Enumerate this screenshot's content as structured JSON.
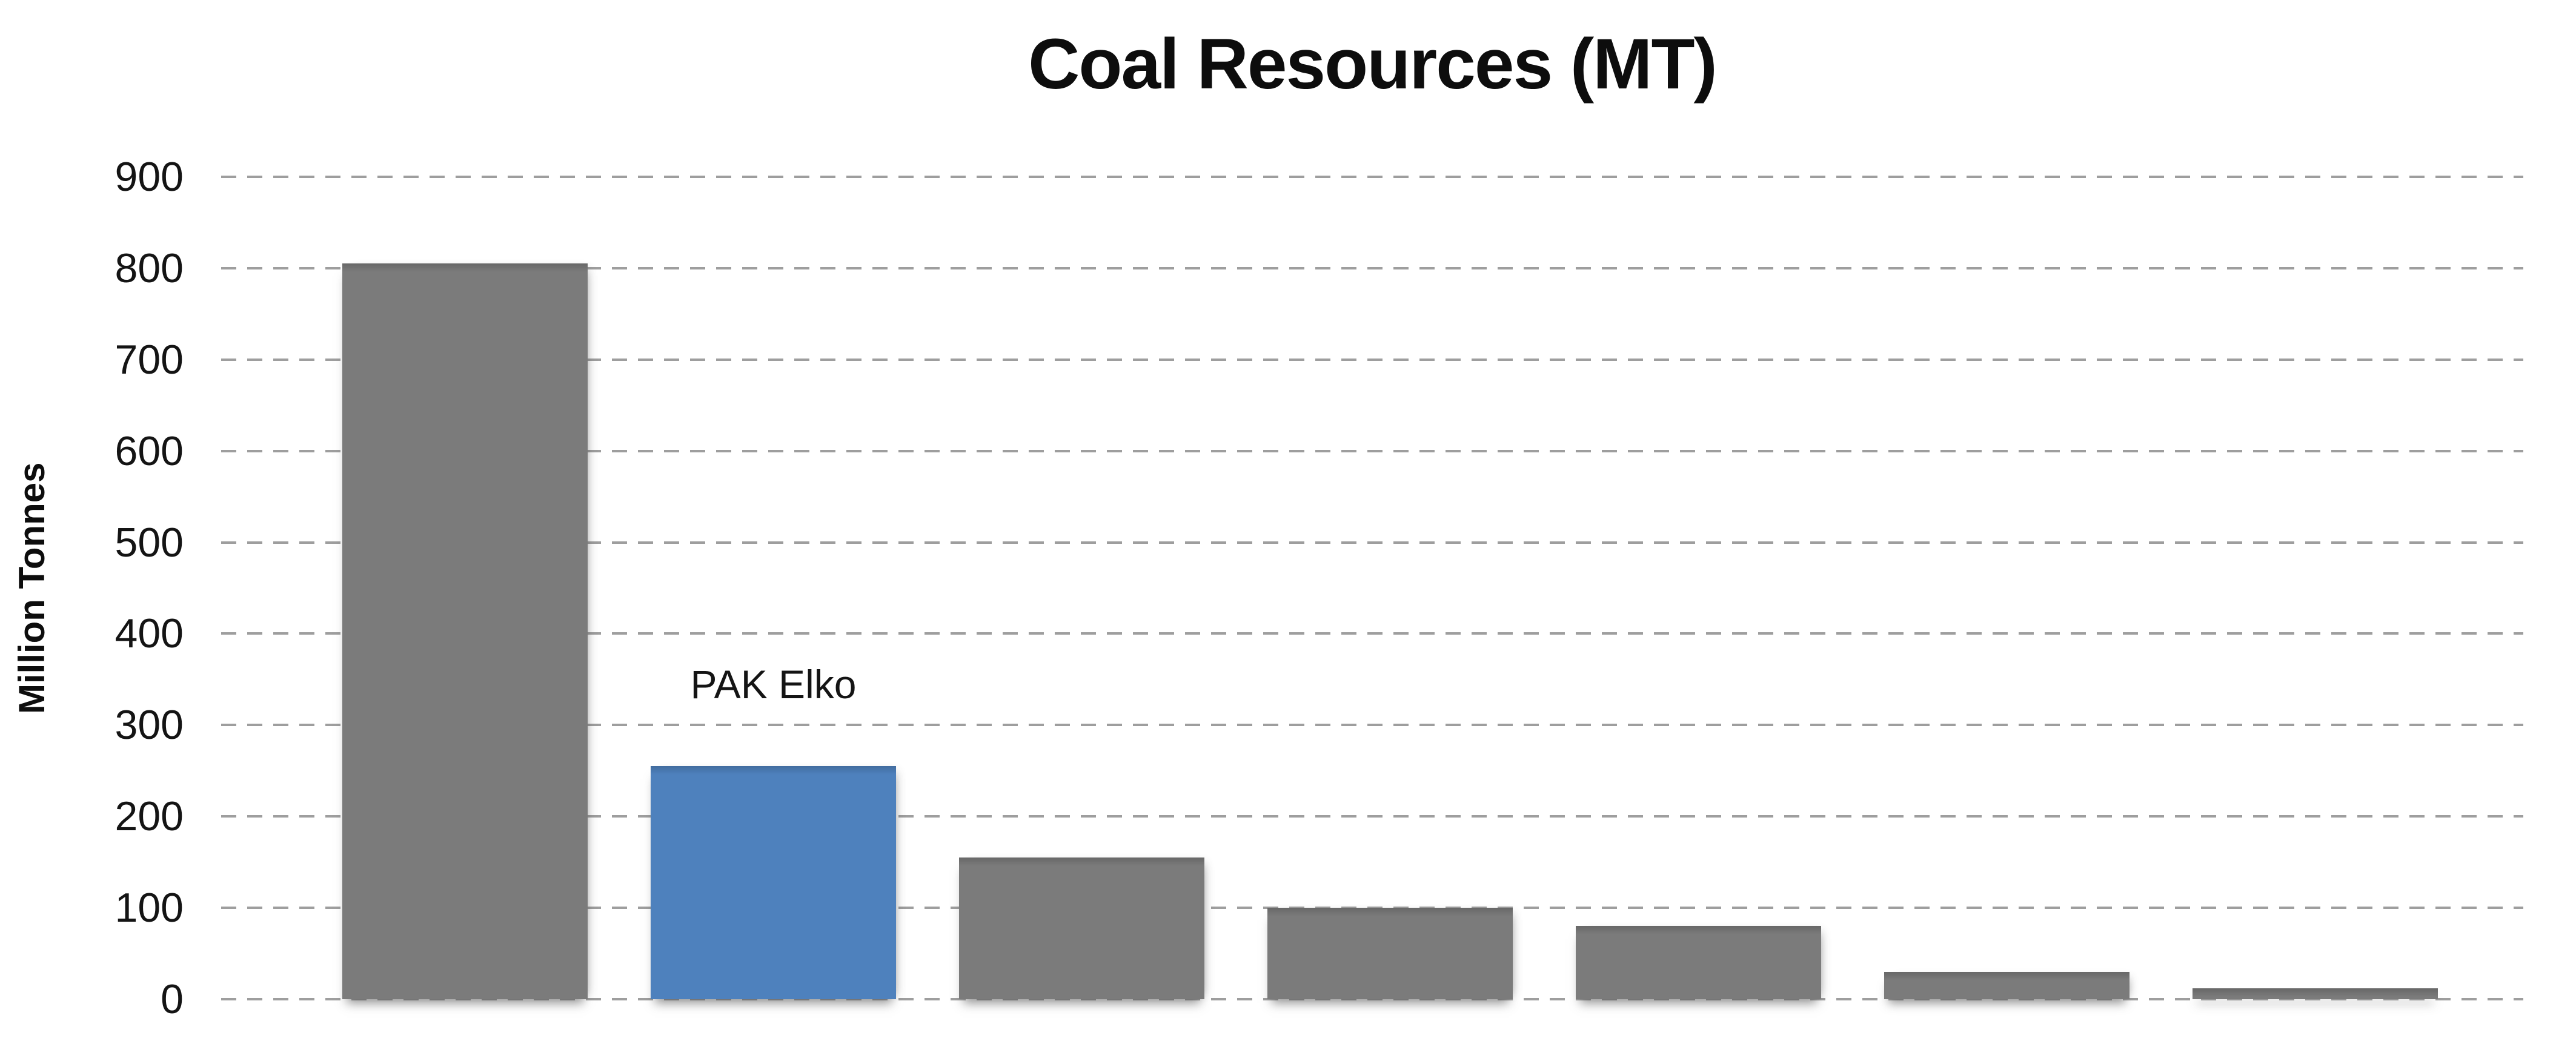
{
  "chart_data": {
    "type": "bar",
    "title": "Coal Resources (MT)",
    "ylabel": "Million Tonnes",
    "xlabel": "",
    "ylim": [
      0,
      900
    ],
    "ytick_interval": 100,
    "yticks": [
      0,
      100,
      200,
      300,
      400,
      500,
      600,
      700,
      800,
      900
    ],
    "grid": {
      "horizontal": true,
      "vertical": false,
      "style": "dashed"
    },
    "legend": "none",
    "categories": [
      "",
      "",
      "",
      "",
      "",
      "",
      ""
    ],
    "bars": [
      {
        "value": 805,
        "color": "#7B7B7B",
        "label": ""
      },
      {
        "value": 255,
        "color": "#4E81BD",
        "label": "PAK Elko"
      },
      {
        "value": 155,
        "color": "#7B7B7B",
        "label": ""
      },
      {
        "value": 100,
        "color": "#7B7B7B",
        "label": ""
      },
      {
        "value": 80,
        "color": "#7B7B7B",
        "label": ""
      },
      {
        "value": 30,
        "color": "#7B7B7B",
        "label": ""
      },
      {
        "value": 12,
        "color": "#7B7B7B",
        "label": ""
      }
    ],
    "colors": {
      "default_bar": "#7B7B7B",
      "highlight_bar": "#4E81BD",
      "gridline": "#9E9E9E",
      "text": "#141414",
      "background": "#FFFFFF"
    }
  }
}
